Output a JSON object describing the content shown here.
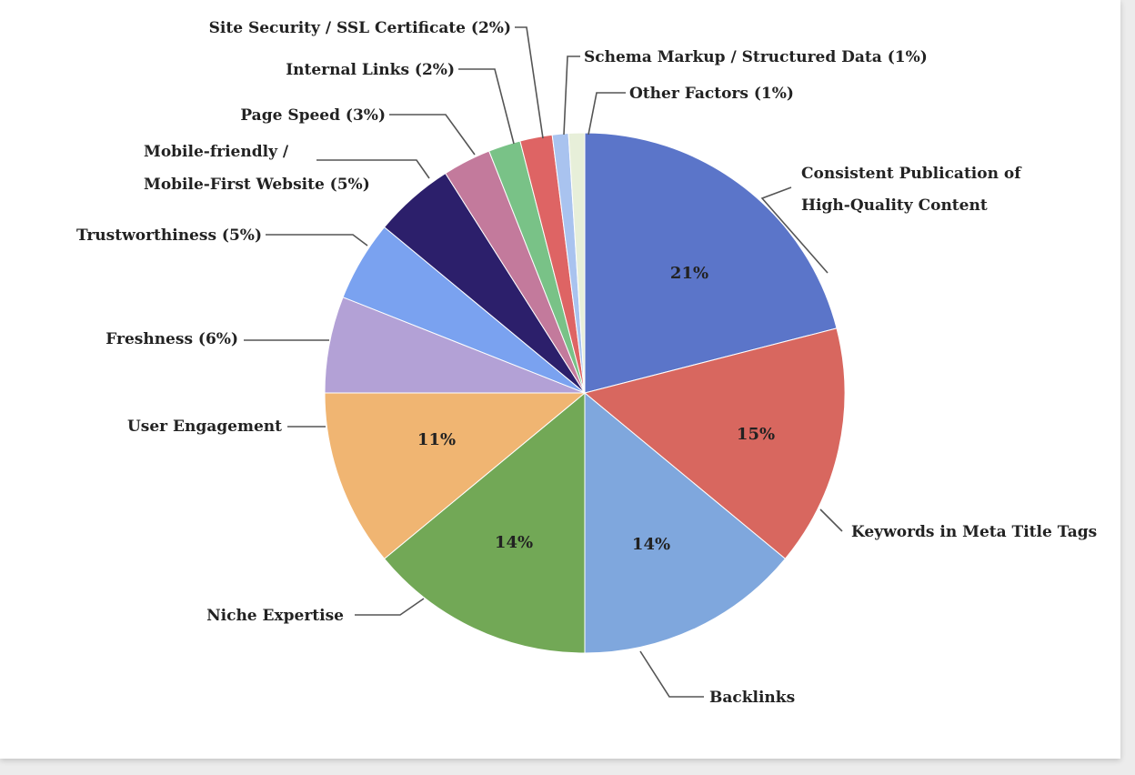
{
  "chart_data": {
    "type": "pie",
    "start_angle_deg": 0,
    "direction": "clockwise",
    "slices": [
      {
        "label": "Consistent Publication of High-Quality Content",
        "label_lines": [
          "Consistent Publication of",
          "High-Quality Content"
        ],
        "value": 21,
        "value_label": "21%",
        "color": "#5b75c9"
      },
      {
        "label": "Keywords in Meta Title Tags",
        "label_lines": [
          "Keywords in Meta Title Tags"
        ],
        "value": 15,
        "value_label": "15%",
        "color": "#d8675f"
      },
      {
        "label": "Backlinks",
        "label_lines": [
          "Backlinks"
        ],
        "value": 14,
        "value_label": "14%",
        "color": "#7fa7dd"
      },
      {
        "label": "Niche Expertise",
        "label_lines": [
          "Niche Expertise"
        ],
        "value": 14,
        "value_label": "14%",
        "color": "#72a856"
      },
      {
        "label": "User Engagement",
        "label_lines": [
          "User Engagement"
        ],
        "value": 11,
        "value_label": "11%",
        "color": "#f0b572"
      },
      {
        "label": "Freshness (6%)",
        "label_lines": [
          "Freshness (6%)"
        ],
        "value": 6,
        "value_label": "",
        "color": "#b3a1d6"
      },
      {
        "label": "Trustworthiness (5%)",
        "label_lines": [
          "Trustworthiness (5%)"
        ],
        "value": 5,
        "value_label": "",
        "color": "#7aa2f0"
      },
      {
        "label": "Mobile-friendly / Mobile-First Website (5%)",
        "label_lines": [
          "Mobile-friendly /",
          "Mobile-First Website (5%)"
        ],
        "value": 5,
        "value_label": "",
        "color": "#2c1f6b"
      },
      {
        "label": "Page Speed (3%)",
        "label_lines": [
          "Page Speed (3%)"
        ],
        "value": 3,
        "value_label": "",
        "color": "#c37a9c"
      },
      {
        "label": "Internal Links (2%)",
        "label_lines": [
          "Internal Links (2%)"
        ],
        "value": 2,
        "value_label": "",
        "color": "#79c287"
      },
      {
        "label": "Site Security / SSL Certificate (2%)",
        "label_lines": [
          "Site Security / SSL Certificate (2%)"
        ],
        "value": 2,
        "value_label": "",
        "color": "#de6464"
      },
      {
        "label": "Schema Markup / Structured Data (1%)",
        "label_lines": [
          "Schema Markup / Structured Data (1%)"
        ],
        "value": 1,
        "value_label": "",
        "color": "#a9c3ef"
      },
      {
        "label": "Other Factors (1%)",
        "label_lines": [
          "Other Factors (1%)"
        ],
        "value": 1,
        "value_label": "",
        "color": "#e7efd9"
      }
    ]
  }
}
